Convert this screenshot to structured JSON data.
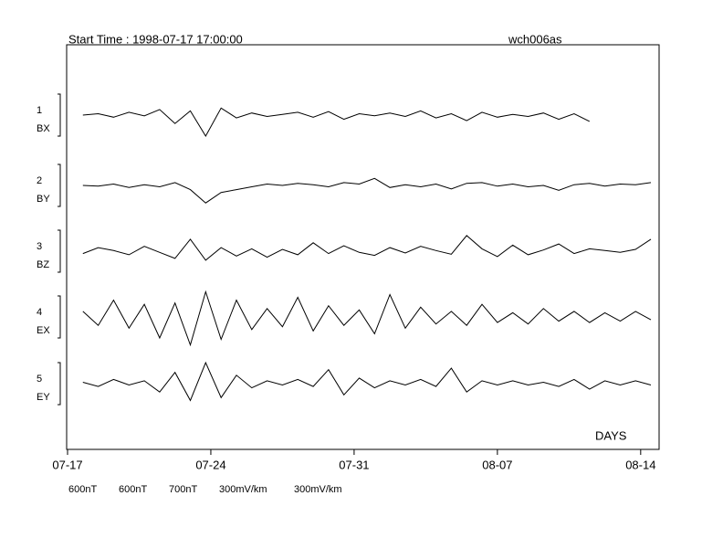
{
  "chart_data": {
    "type": "line",
    "title": "Start Time : 1998-07-17 17:00:00",
    "subtitle": "wch006as",
    "x_label": "DAYS",
    "xlim": [
      0,
      28.9
    ],
    "xticks": [
      {
        "value": 0,
        "label": "07-17"
      },
      {
        "value": 7,
        "label": "07-24"
      },
      {
        "value": 14,
        "label": "07-31"
      },
      {
        "value": 21,
        "label": "08-07"
      },
      {
        "value": 28,
        "label": "08-14"
      }
    ],
    "x": [
      0.75,
      1.5,
      2.25,
      3,
      3.75,
      4.5,
      5.25,
      6,
      6.75,
      7.5,
      8.25,
      9,
      9.75,
      10.5,
      11.25,
      12,
      12.75,
      13.5,
      14.25,
      15,
      15.75,
      16.5,
      17.25,
      18,
      18.75,
      19.5,
      20.25,
      21,
      21.75,
      22.5,
      23.25,
      24,
      24.75,
      25.5,
      26.25,
      27,
      27.75,
      28.5
    ],
    "series": [
      {
        "number": "1",
        "name": "BX",
        "color": "#000000",
        "scale": {
          "value": 600,
          "label": "600nT"
        },
        "values": [
          0,
          20,
          -30,
          40,
          -10,
          80,
          -120,
          60,
          -300,
          100,
          -40,
          30,
          -20,
          10,
          40,
          -30,
          50,
          -60,
          20,
          -10,
          30,
          -20,
          60,
          -40,
          20,
          -80,
          40,
          -30,
          10,
          -20,
          30,
          -60,
          20,
          -90,
          null,
          null,
          null,
          null
        ]
      },
      {
        "number": "2",
        "name": "BY",
        "color": "#000000",
        "scale": {
          "value": 600,
          "label": "600nT"
        },
        "values": [
          0,
          -10,
          20,
          -30,
          10,
          -20,
          40,
          -60,
          -250,
          -100,
          -60,
          -20,
          20,
          0,
          30,
          10,
          -20,
          40,
          20,
          100,
          -30,
          10,
          -20,
          20,
          -50,
          30,
          40,
          -10,
          20,
          -20,
          0,
          -70,
          10,
          30,
          -10,
          20,
          10,
          40
        ]
      },
      {
        "number": "3",
        "name": "BZ",
        "color": "#000000",
        "scale": {
          "value": 700,
          "label": "700nT"
        },
        "values": [
          -40,
          60,
          10,
          -60,
          80,
          -20,
          -120,
          200,
          -150,
          60,
          -80,
          40,
          -100,
          30,
          -60,
          140,
          -40,
          90,
          -20,
          -70,
          60,
          -30,
          80,
          10,
          -50,
          260,
          40,
          -90,
          100,
          -60,
          20,
          120,
          -40,
          40,
          10,
          -20,
          30,
          200
        ]
      },
      {
        "number": "4",
        "name": "EX",
        "color": "#000000",
        "scale": {
          "value": 300,
          "label": "300mV/km"
        },
        "values": [
          40,
          -60,
          120,
          -80,
          90,
          -150,
          100,
          -200,
          180,
          -160,
          120,
          -90,
          60,
          -70,
          140,
          -100,
          80,
          -60,
          50,
          -120,
          160,
          -80,
          70,
          -50,
          40,
          -60,
          90,
          -40,
          30,
          -50,
          60,
          -30,
          40,
          -40,
          30,
          -30,
          40,
          -20
        ]
      },
      {
        "number": "5",
        "name": "EY",
        "color": "#000000",
        "scale": {
          "value": 300,
          "label": "300mV/km"
        },
        "values": [
          10,
          -20,
          30,
          -10,
          20,
          -60,
          80,
          -120,
          150,
          -100,
          60,
          -30,
          20,
          -10,
          30,
          -20,
          100,
          -80,
          40,
          -30,
          20,
          -10,
          30,
          -20,
          110,
          -60,
          20,
          -10,
          20,
          -10,
          10,
          -20,
          30,
          -40,
          20,
          -10,
          20,
          -10
        ]
      }
    ]
  }
}
